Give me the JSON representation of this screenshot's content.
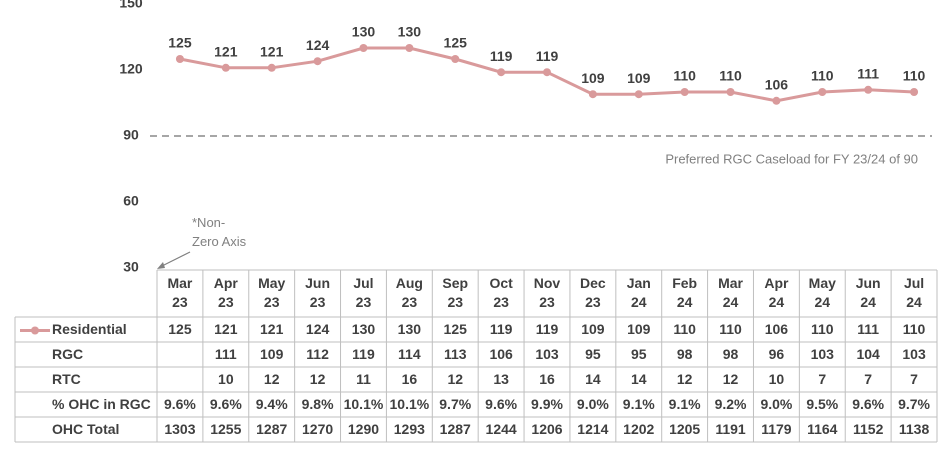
{
  "chart_data": {
    "type": "line",
    "categories": [
      "Mar 23",
      "Apr 23",
      "May 23",
      "Jun 23",
      "Jul 23",
      "Aug 23",
      "Sep 23",
      "Oct 23",
      "Nov 23",
      "Dec 23",
      "Jan 24",
      "Feb 24",
      "Mar 24",
      "Apr 24",
      "May 24",
      "Jun 24",
      "Jul 24"
    ],
    "series": [
      {
        "name": "Residential",
        "color": "#d99a9b",
        "values": [
          125,
          121,
          121,
          124,
          130,
          130,
          125,
          119,
          119,
          109,
          109,
          110,
          110,
          106,
          110,
          111,
          110
        ]
      }
    ],
    "ylim": [
      30,
      150
    ],
    "yticks": [
      30,
      60,
      90,
      120,
      150
    ],
    "reference_line": {
      "value": 90,
      "label": "Preferred RGC Caseload for FY 23/24 of 90"
    },
    "annotation": "*Non-Zero Axis",
    "table": [
      {
        "name": "RGC",
        "values": [
          null,
          111,
          109,
          112,
          119,
          114,
          113,
          106,
          103,
          95,
          95,
          98,
          98,
          96,
          103,
          104,
          103
        ]
      },
      {
        "name": "RTC",
        "values": [
          null,
          10,
          12,
          12,
          11,
          16,
          12,
          13,
          16,
          14,
          14,
          12,
          12,
          10,
          7,
          7,
          7
        ]
      },
      {
        "name": "% OHC in RGC",
        "values": [
          "9.6%",
          "9.6%",
          "9.4%",
          "9.8%",
          "10.1%",
          "10.1%",
          "9.7%",
          "9.6%",
          "9.9%",
          "9.0%",
          "9.1%",
          "9.1%",
          "9.2%",
          "9.0%",
          "9.5%",
          "9.6%",
          "9.7%"
        ]
      },
      {
        "name": "OHC Total",
        "values": [
          1303,
          1255,
          1287,
          1270,
          1290,
          1293,
          1287,
          1244,
          1206,
          1214,
          1202,
          1205,
          1191,
          1179,
          1164,
          1152,
          1138
        ]
      }
    ]
  }
}
